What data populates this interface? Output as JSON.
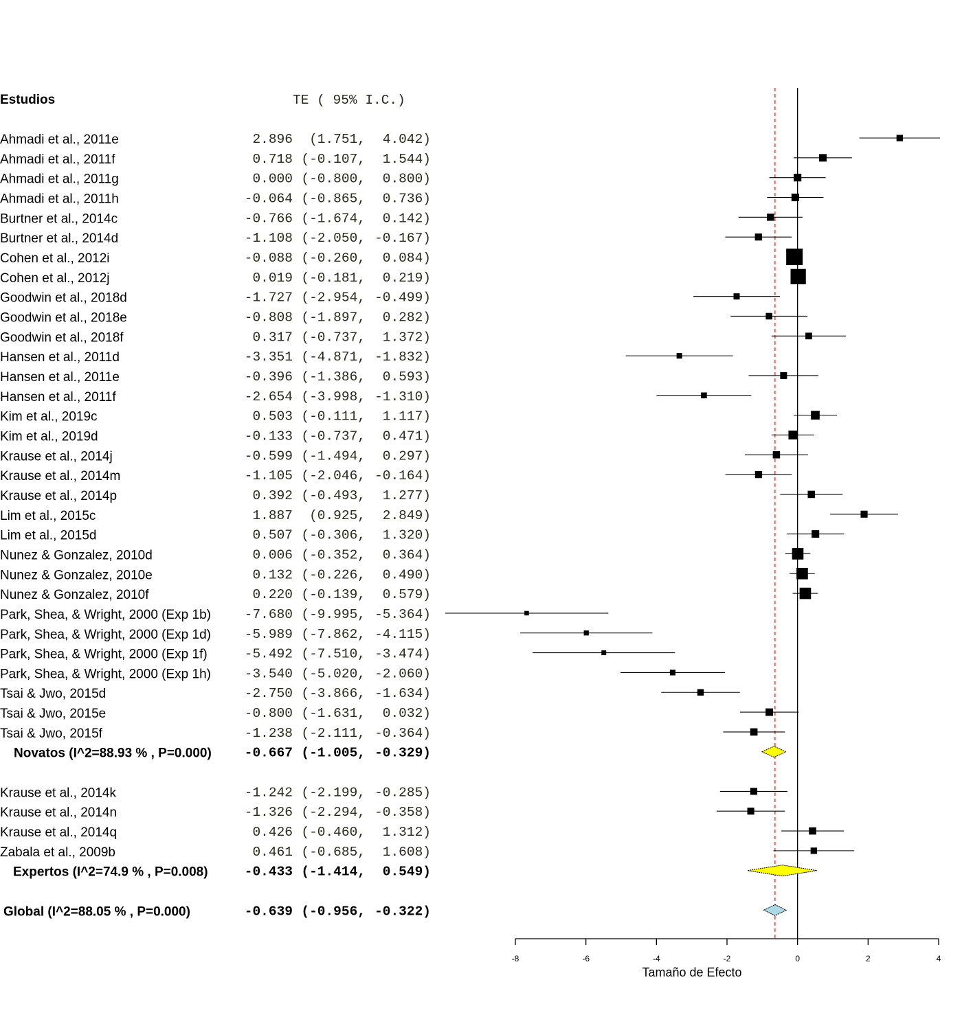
{
  "chart_data": {
    "type": "forest",
    "header_label": "Estudios",
    "header_values": "TE ( 95% I.C.)",
    "xlabel": "Tamaño de Efecto",
    "xlim": [
      -8,
      4
    ],
    "xticks": [
      -8,
      -6,
      -4,
      -2,
      0,
      2,
      4
    ],
    "reference_line": 0,
    "overall_line": -0.639,
    "colors": {
      "box": "#000000",
      "subgroup_diamond": "#ffff00",
      "overall_diamond": "#add8e6",
      "overall_line": "#ff0000"
    },
    "groups": [
      {
        "studies": [
          {
            "name": "Ahmadi et al., 2011e",
            "te": "2.896",
            "lo": "1.751",
            "hi": "4.042"
          },
          {
            "name": "Ahmadi et al., 2011f",
            "te": "0.718",
            "lo": "-0.107",
            "hi": "1.544"
          },
          {
            "name": "Ahmadi et al., 2011g",
            "te": "0.000",
            "lo": "-0.800",
            "hi": "0.800"
          },
          {
            "name": "Ahmadi et al., 2011h",
            "te": "-0.064",
            "lo": "-0.865",
            "hi": "0.736"
          },
          {
            "name": "Burtner et al., 2014c",
            "te": "-0.766",
            "lo": "-1.674",
            "hi": "0.142"
          },
          {
            "name": "Burtner et al., 2014d",
            "te": "-1.108",
            "lo": "-2.050",
            "hi": "-0.167"
          },
          {
            "name": "Cohen et al., 2012i",
            "te": "-0.088",
            "lo": "-0.260",
            "hi": "0.084"
          },
          {
            "name": "Cohen et al., 2012j",
            "te": "0.019",
            "lo": "-0.181",
            "hi": "0.219"
          },
          {
            "name": "Goodwin et al., 2018d",
            "te": "-1.727",
            "lo": "-2.954",
            "hi": "-0.499"
          },
          {
            "name": "Goodwin et al., 2018e",
            "te": "-0.808",
            "lo": "-1.897",
            "hi": "0.282"
          },
          {
            "name": "Goodwin et al., 2018f",
            "te": "0.317",
            "lo": "-0.737",
            "hi": "1.372"
          },
          {
            "name": "Hansen et al., 2011d",
            "te": "-3.351",
            "lo": "-4.871",
            "hi": "-1.832"
          },
          {
            "name": "Hansen et al., 2011e",
            "te": "-0.396",
            "lo": "-1.386",
            "hi": "0.593"
          },
          {
            "name": "Hansen et al., 2011f",
            "te": "-2.654",
            "lo": "-3.998",
            "hi": "-1.310"
          },
          {
            "name": "Kim et al., 2019c",
            "te": "0.503",
            "lo": "-0.111",
            "hi": "1.117"
          },
          {
            "name": "Kim et al., 2019d",
            "te": "-0.133",
            "lo": "-0.737",
            "hi": "0.471"
          },
          {
            "name": "Krause et al., 2014j",
            "te": "-0.599",
            "lo": "-1.494",
            "hi": "0.297"
          },
          {
            "name": "Krause et al., 2014m",
            "te": "-1.105",
            "lo": "-2.046",
            "hi": "-0.164"
          },
          {
            "name": "Krause et al., 2014p",
            "te": "0.392",
            "lo": "-0.493",
            "hi": "1.277"
          },
          {
            "name": "Lim et al., 2015c",
            "te": "1.887",
            "lo": "0.925",
            "hi": "2.849"
          },
          {
            "name": "Lim et al., 2015d",
            "te": "0.507",
            "lo": "-0.306",
            "hi": "1.320"
          },
          {
            "name": "Nunez & Gonzalez, 2010d",
            "te": "0.006",
            "lo": "-0.352",
            "hi": "0.364"
          },
          {
            "name": "Nunez & Gonzalez, 2010e",
            "te": "0.132",
            "lo": "-0.226",
            "hi": "0.490"
          },
          {
            "name": "Nunez & Gonzalez, 2010f",
            "te": "0.220",
            "lo": "-0.139",
            "hi": "0.579"
          },
          {
            "name": "Park, Shea, & Wright, 2000 (Exp 1b)",
            "te": "-7.680",
            "lo": "-9.995",
            "hi": "-5.364"
          },
          {
            "name": "Park, Shea, & Wright, 2000 (Exp 1d)",
            "te": "-5.989",
            "lo": "-7.862",
            "hi": "-4.115"
          },
          {
            "name": "Park, Shea, & Wright, 2000 (Exp 1f)",
            "te": "-5.492",
            "lo": "-7.510",
            "hi": "-3.474"
          },
          {
            "name": "Park, Shea, & Wright, 2000 (Exp 1h)",
            "te": "-3.540",
            "lo": "-5.020",
            "hi": "-2.060"
          },
          {
            "name": "Tsai & Jwo, 2015d",
            "te": "-2.750",
            "lo": "-3.866",
            "hi": "-1.634"
          },
          {
            "name": "Tsai & Jwo, 2015e",
            "te": "-0.800",
            "lo": "-1.631",
            "hi": "0.032"
          },
          {
            "name": "Tsai & Jwo, 2015f",
            "te": "-1.238",
            "lo": "-2.111",
            "hi": "-0.364"
          }
        ],
        "summary": {
          "name": "Novatos",
          "stats": "(I^2=88.93 % , P=0.000)",
          "te": "-0.667",
          "lo": "-1.005",
          "hi": "-0.329"
        }
      },
      {
        "studies": [
          {
            "name": "Krause et al., 2014k",
            "te": "-1.242",
            "lo": "-2.199",
            "hi": "-0.285"
          },
          {
            "name": "Krause et al., 2014n",
            "te": "-1.326",
            "lo": "-2.294",
            "hi": "-0.358"
          },
          {
            "name": "Krause et al., 2014q",
            "te": "0.426",
            "lo": "-0.460",
            "hi": "1.312"
          },
          {
            "name": "Zabala et al., 2009b",
            "te": "0.461",
            "lo": "-0.685",
            "hi": "1.608"
          }
        ],
        "summary": {
          "name": "Expertos",
          "stats": "(I^2=74.9 % , P=0.008)",
          "te": "-0.433",
          "lo": "-1.414",
          "hi": "0.549"
        }
      }
    ],
    "overall": {
      "name": "Global",
      "stats": "(I^2=88.05 % , P=0.000)",
      "te": "-0.639",
      "lo": "-0.956",
      "hi": "-0.322"
    }
  }
}
